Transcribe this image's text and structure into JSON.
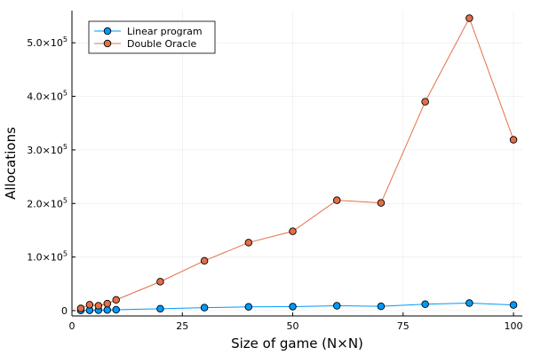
{
  "chart_data": {
    "type": "line",
    "title": "",
    "xlabel": "Size of game (N×N)",
    "ylabel": "Allocations",
    "xlim": [
      0,
      102
    ],
    "ylim": [
      -10000,
      560000
    ],
    "xticks": [
      0,
      25,
      50,
      75,
      100
    ],
    "xtick_labels": [
      "0",
      "25",
      "50",
      "75",
      "100"
    ],
    "yticks": [
      0,
      100000,
      200000,
      300000,
      400000,
      500000
    ],
    "ytick_labels": [
      {
        "base": "0",
        "exp": ""
      },
      {
        "base": "1.0×10",
        "exp": "5"
      },
      {
        "base": "2.0×10",
        "exp": "5"
      },
      {
        "base": "3.0×10",
        "exp": "5"
      },
      {
        "base": "4.0×10",
        "exp": "5"
      },
      {
        "base": "5.0×10",
        "exp": "5"
      }
    ],
    "grid": true,
    "legend_position": "top-left",
    "series": [
      {
        "name": "Linear program",
        "color": "#009AFA",
        "x": [
          2,
          4,
          6,
          8,
          10,
          20,
          30,
          40,
          50,
          60,
          70,
          80,
          90,
          100
        ],
        "y": [
          300,
          500,
          800,
          1200,
          1600,
          3500,
          5500,
          7000,
          7500,
          9000,
          8000,
          12000,
          14000,
          10500
        ]
      },
      {
        "name": "Double Oracle",
        "color": "#E36F47",
        "x": [
          2,
          4,
          6,
          8,
          10,
          20,
          30,
          40,
          50,
          60,
          70,
          80,
          90,
          100
        ],
        "y": [
          4000,
          11000,
          9000,
          13000,
          20000,
          54000,
          93000,
          127000,
          148000,
          206000,
          201000,
          390000,
          546000,
          319000
        ]
      }
    ]
  }
}
